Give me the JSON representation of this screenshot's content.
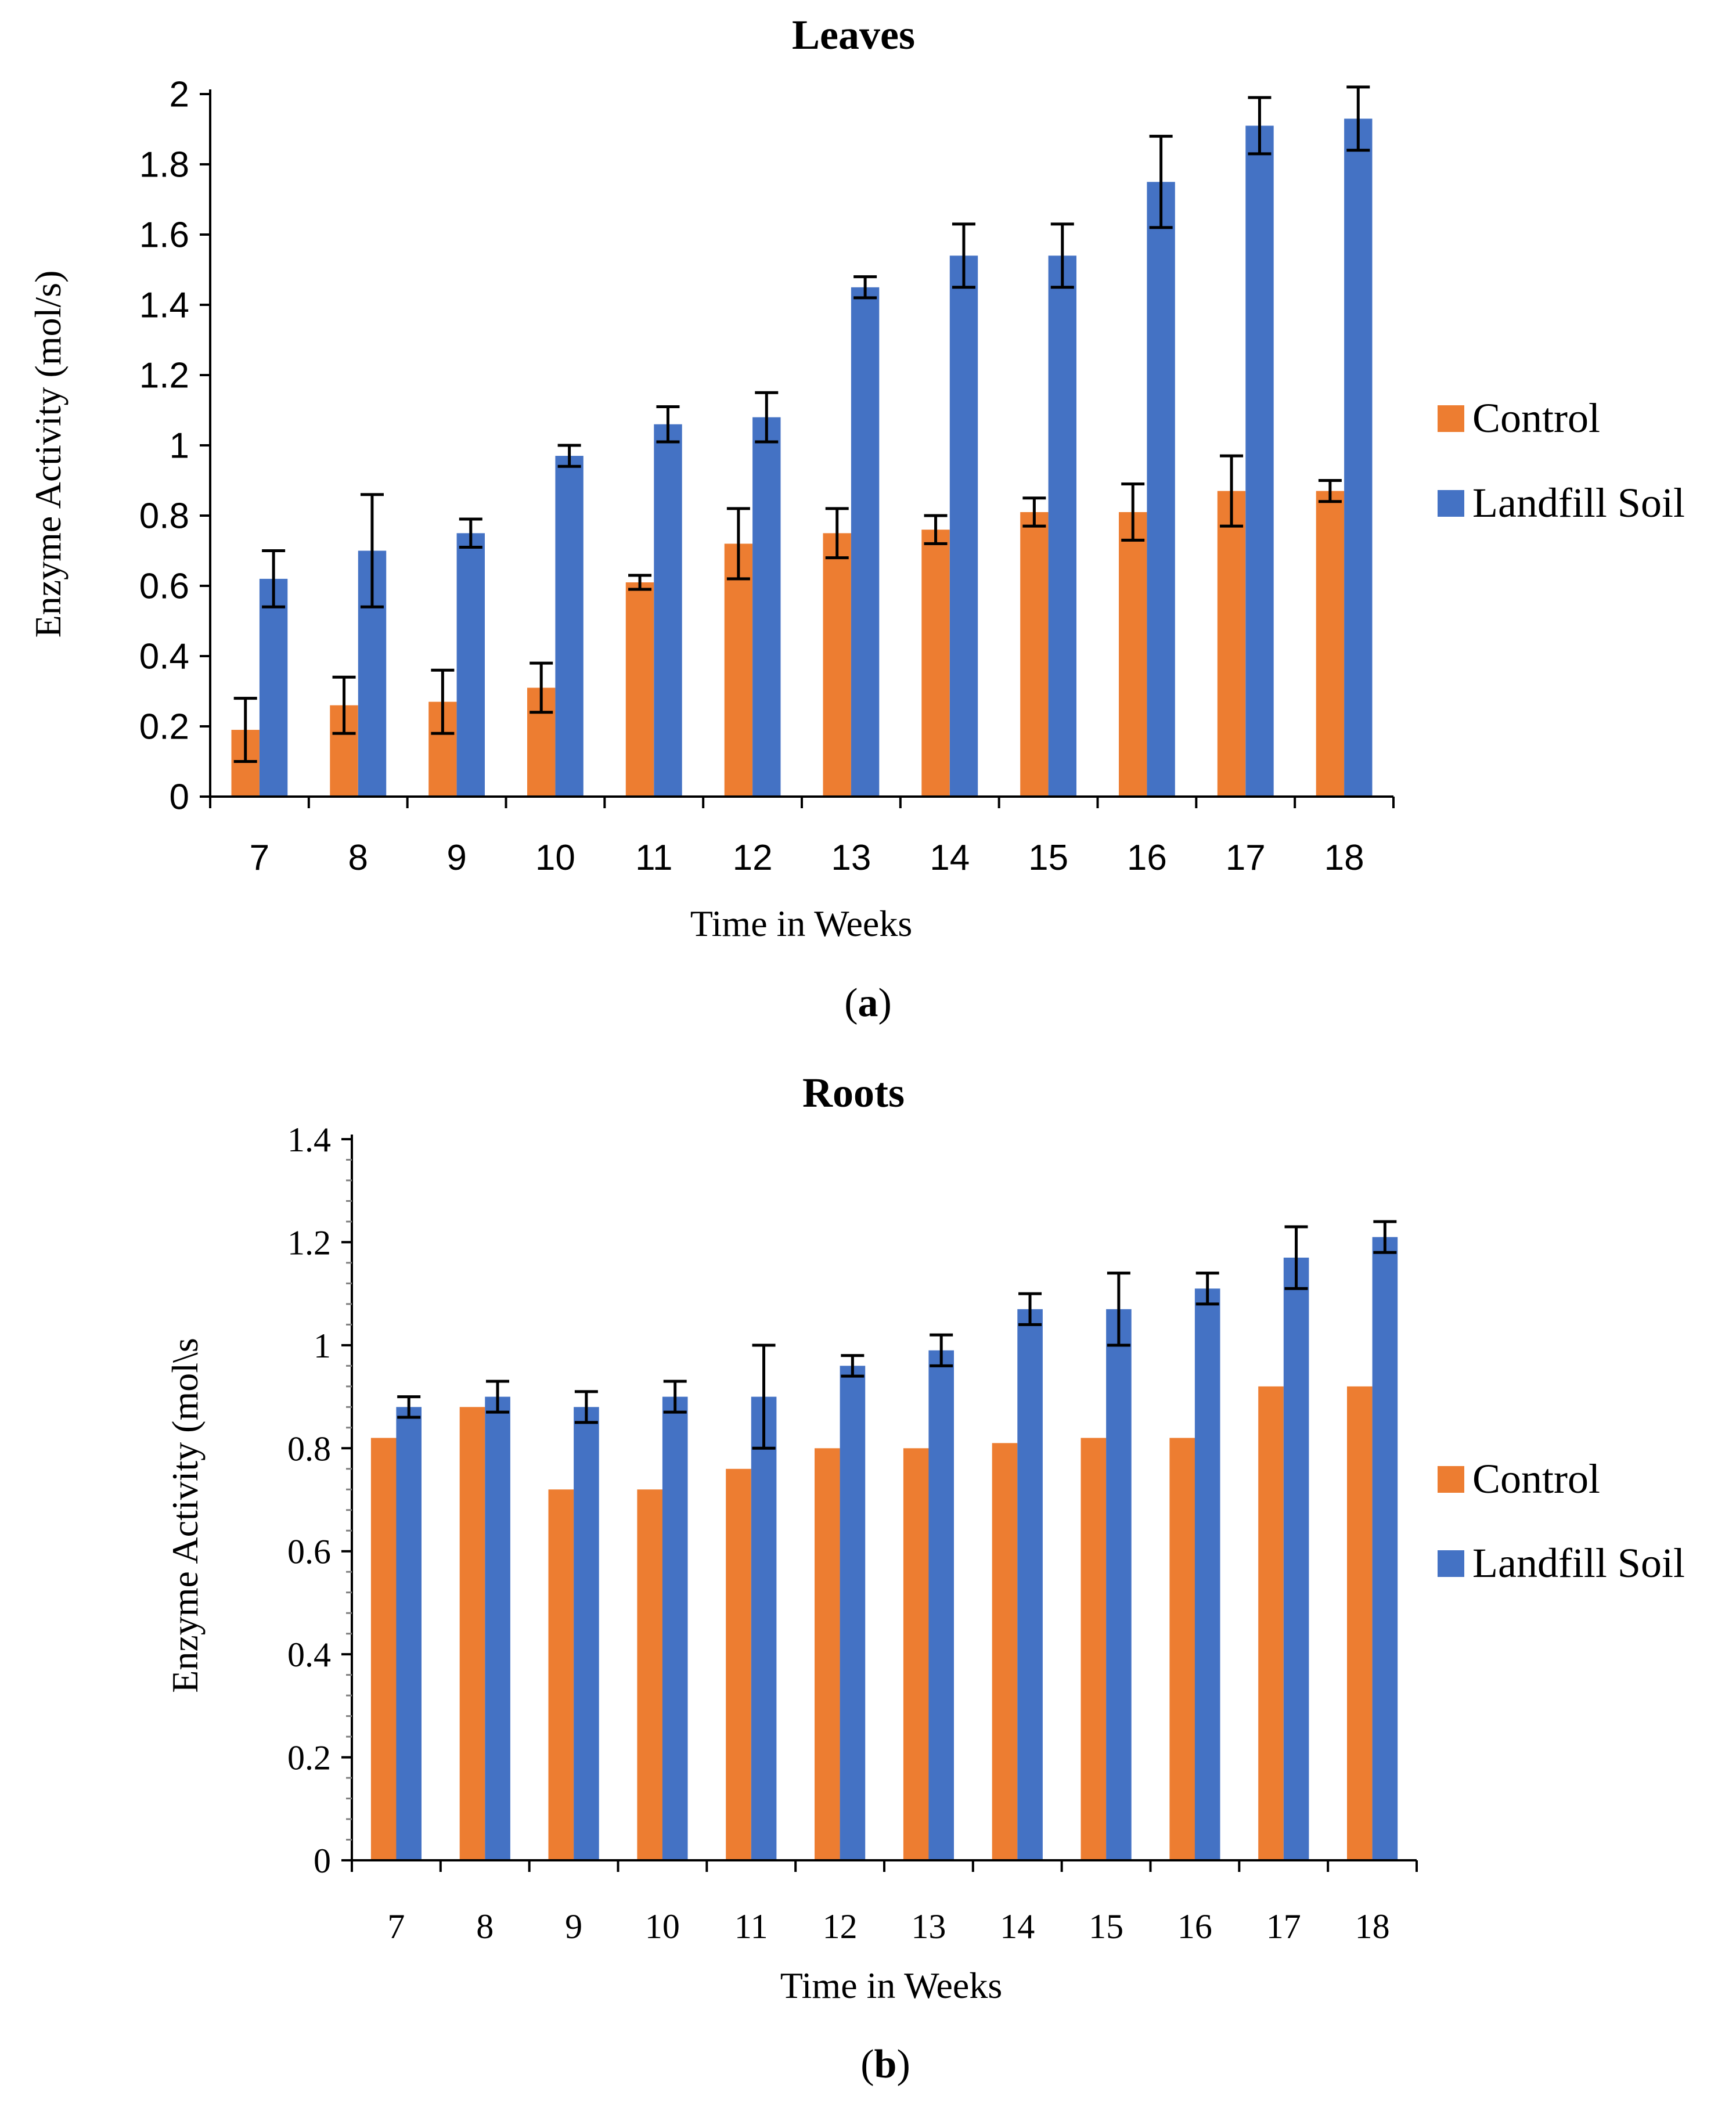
{
  "colors": {
    "control": "#ED7D31",
    "landfill": "#4472C4",
    "axis": "#000000",
    "errorbar": "#000000"
  },
  "chart_data": [
    {
      "type": "bar",
      "title": "Leaves",
      "xlabel": "Time in Weeks",
      "ylabel": "Enzyme Activity (mol/s)",
      "caption_pre": "(",
      "caption_letter": "a",
      "caption_post": ")",
      "categories": [
        "7",
        "8",
        "9",
        "10",
        "11",
        "12",
        "13",
        "14",
        "15",
        "16",
        "17",
        "18"
      ],
      "ylim": [
        0,
        2
      ],
      "yticks": [
        "0",
        "0.2",
        "0.4",
        "0.6",
        "0.8",
        "1",
        "1.2",
        "1.4",
        "1.6",
        "1.8",
        "2"
      ],
      "grid": false,
      "legend_position": "right",
      "series": [
        {
          "name": "Control",
          "values": [
            0.19,
            0.26,
            0.27,
            0.31,
            0.61,
            0.72,
            0.75,
            0.76,
            0.81,
            0.81,
            0.87,
            0.87
          ],
          "errors": [
            0.09,
            0.08,
            0.09,
            0.07,
            0.02,
            0.1,
            0.07,
            0.04,
            0.04,
            0.08,
            0.1,
            0.03
          ]
        },
        {
          "name": "Landfill Soil",
          "values": [
            0.62,
            0.7,
            0.75,
            0.97,
            1.06,
            1.08,
            1.45,
            1.54,
            1.54,
            1.75,
            1.91,
            1.93
          ],
          "errors": [
            0.08,
            0.16,
            0.04,
            0.03,
            0.05,
            0.07,
            0.03,
            0.09,
            0.09,
            0.13,
            0.08,
            0.09
          ]
        }
      ]
    },
    {
      "type": "bar",
      "title": "Roots",
      "xlabel": "Time in Weeks",
      "ylabel": "Enzyme Activity (mol\\s",
      "caption_pre": "(",
      "caption_letter": "b",
      "caption_post": ")",
      "categories": [
        "7",
        "8",
        "9",
        "10",
        "11",
        "12",
        "13",
        "14",
        "15",
        "16",
        "17",
        "18"
      ],
      "ylim": [
        0,
        1.4
      ],
      "yticks": [
        "0",
        "0.2",
        "0.4",
        "0.6",
        "0.8",
        "1",
        "1.2",
        "1.4"
      ],
      "grid": false,
      "legend_position": "right",
      "series": [
        {
          "name": "Control",
          "values": [
            0.82,
            0.88,
            0.72,
            0.72,
            0.76,
            0.8,
            0.8,
            0.81,
            0.82,
            0.82,
            0.92,
            0.92
          ],
          "errors": [
            0,
            0,
            0,
            0,
            0,
            0,
            0,
            0,
            0,
            0,
            0,
            0
          ]
        },
        {
          "name": "Landfill Soil",
          "values": [
            0.88,
            0.9,
            0.88,
            0.9,
            0.9,
            0.96,
            0.99,
            1.07,
            1.07,
            1.11,
            1.17,
            1.21
          ],
          "errors": [
            0.02,
            0.03,
            0.03,
            0.03,
            0.1,
            0.02,
            0.03,
            0.03,
            0.07,
            0.03,
            0.06,
            0.03
          ]
        }
      ]
    }
  ]
}
